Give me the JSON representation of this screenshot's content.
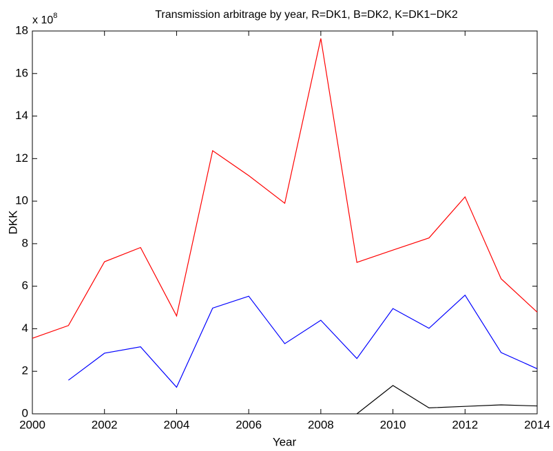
{
  "chart_data": {
    "type": "line",
    "title": "Transmission arbitrage by year, R=DK1, B=DK2, K=DK1−DK2",
    "axis_multiplier": {
      "base": "x 10",
      "exponent": "8"
    },
    "x_label": "Year",
    "y_label": "DKK",
    "x": [
      2000,
      2001,
      2002,
      2003,
      2004,
      2005,
      2006,
      2007,
      2008,
      2009,
      2010,
      2011,
      2012,
      2013,
      2014
    ],
    "series": [
      {
        "color": "#ff0000",
        "values": [
          3.55,
          4.15,
          7.15,
          7.82,
          4.6,
          12.37,
          11.2,
          9.9,
          17.65,
          7.12,
          7.7,
          8.27,
          10.2,
          6.35,
          4.78
        ]
      },
      {
        "color": "#0000ff",
        "values": [
          null,
          1.58,
          2.85,
          3.15,
          1.25,
          4.97,
          5.53,
          3.3,
          4.4,
          2.6,
          4.95,
          4.02,
          5.58,
          2.88,
          2.12
        ]
      },
      {
        "color": "#000000",
        "values": [
          null,
          null,
          null,
          null,
          null,
          null,
          null,
          null,
          null,
          0,
          1.33,
          0.28,
          0.35,
          0.42,
          0.37
        ]
      }
    ],
    "xlim": [
      2000,
      2014
    ],
    "xticks": [
      2000,
      2002,
      2004,
      2006,
      2008,
      2010,
      2012,
      2014
    ],
    "ylim": [
      0,
      18
    ],
    "yticks": [
      0,
      2,
      4,
      6,
      8,
      10,
      12,
      14,
      16,
      18
    ],
    "grid": false
  }
}
